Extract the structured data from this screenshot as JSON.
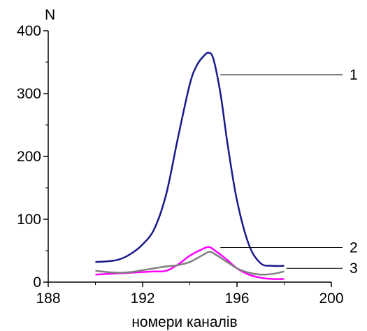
{
  "chart_data": {
    "type": "line",
    "title": "",
    "xlabel": "номери каналів",
    "ylabel": "N",
    "xlim": [
      188,
      200
    ],
    "ylim": [
      0,
      400
    ],
    "x_ticks": [
      188,
      192,
      196,
      200
    ],
    "y_ticks": [
      0,
      100,
      200,
      300,
      400
    ],
    "grid": false,
    "series": [
      {
        "name": "1",
        "color": "#1a1a8c",
        "x": [
          190,
          190.5,
          191,
          191.5,
          192,
          192.5,
          193,
          193.5,
          194,
          194.3,
          194.6,
          194.8,
          195.0,
          195.3,
          195.6,
          196,
          196.5,
          197,
          197.5,
          198
        ],
        "y": [
          32,
          33,
          36,
          45,
          60,
          85,
          140,
          230,
          315,
          345,
          360,
          365,
          355,
          300,
          220,
          130,
          60,
          30,
          26,
          26
        ]
      },
      {
        "name": "2",
        "color": "#ff00ff",
        "x": [
          190,
          190.5,
          191,
          191.5,
          192,
          192.5,
          193,
          193.5,
          194,
          194.5,
          194.8,
          195.0,
          195.5,
          196,
          196.5,
          197,
          197.5,
          198
        ],
        "y": [
          12,
          13,
          14,
          15,
          16,
          17,
          18,
          28,
          42,
          52,
          56,
          52,
          38,
          22,
          12,
          7,
          5,
          5
        ]
      },
      {
        "name": "3",
        "color": "#808080",
        "x": [
          190,
          190.5,
          191,
          191.5,
          192,
          192.5,
          193,
          193.5,
          194,
          194.5,
          194.8,
          195.0,
          195.5,
          196,
          196.5,
          197,
          197.5,
          198
        ],
        "y": [
          18,
          16,
          15,
          16,
          19,
          22,
          25,
          27,
          32,
          42,
          48,
          46,
          34,
          22,
          15,
          12,
          13,
          17
        ]
      }
    ],
    "callouts": [
      {
        "label": "1",
        "series": 0,
        "anchor": [
          195.0,
          330
        ]
      },
      {
        "label": "2",
        "series": 1,
        "anchor": [
          195.0,
          55
        ]
      },
      {
        "label": "3",
        "series": 2,
        "anchor": [
          197.8,
          22
        ]
      }
    ]
  }
}
